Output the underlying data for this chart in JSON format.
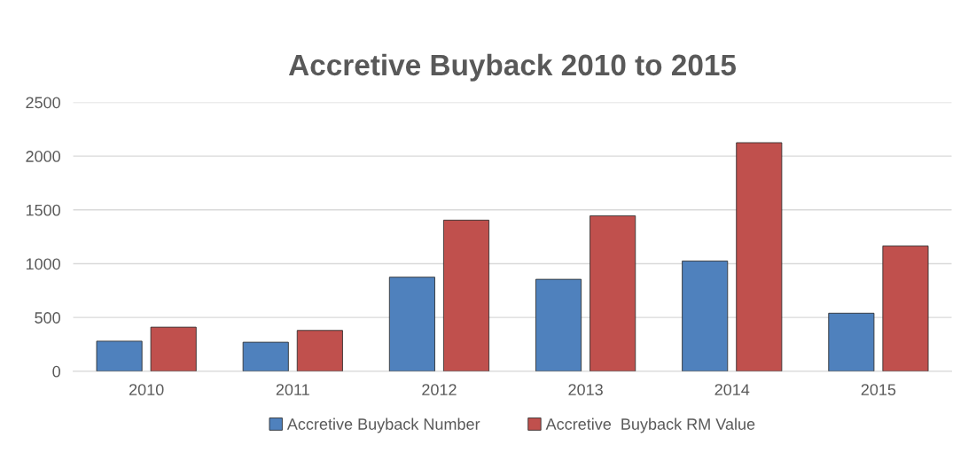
{
  "chart_data": {
    "type": "bar",
    "title": "Accretive Buyback 2010 to 2015",
    "categories": [
      "2010",
      "2011",
      "2012",
      "2013",
      "2014",
      "2015"
    ],
    "series": [
      {
        "name": "Accretive Buyback Number",
        "color": "#4f81bd",
        "values": [
          280,
          270,
          875,
          855,
          1025,
          540
        ]
      },
      {
        "name": "Accretive  Buyback RM Value",
        "color": "#c0504d",
        "values": [
          410,
          380,
          1405,
          1445,
          2125,
          1165
        ]
      }
    ],
    "ylim": [
      0,
      2500
    ],
    "yticks": [
      0,
      500,
      1000,
      1500,
      2000,
      2500
    ],
    "grid": "y",
    "legend": "bottom"
  }
}
